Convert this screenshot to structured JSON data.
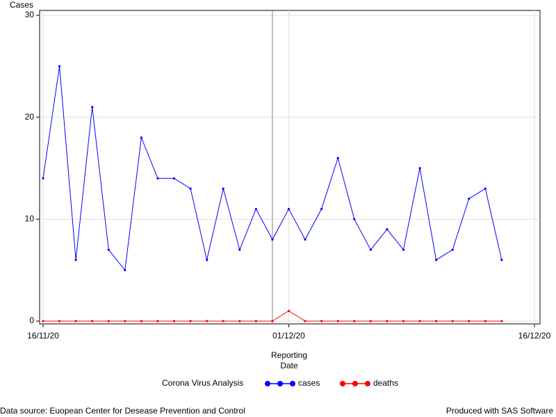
{
  "chart_data": {
    "type": "line",
    "y_label": "Cases",
    "x_label": [
      "Reporting",
      "Date"
    ],
    "legend_title": "Corona Virus Analysis",
    "x": [
      "16/11/20",
      "17/11/20",
      "18/11/20",
      "19/11/20",
      "20/11/20",
      "21/11/20",
      "22/11/20",
      "23/11/20",
      "24/11/20",
      "25/11/20",
      "26/11/20",
      "27/11/20",
      "28/11/20",
      "29/11/20",
      "30/11/20",
      "01/12/20",
      "02/12/20",
      "03/12/20",
      "04/12/20",
      "05/12/20",
      "06/12/20",
      "07/12/20",
      "08/12/20",
      "09/12/20",
      "10/12/20",
      "11/12/20",
      "12/12/20",
      "13/12/20",
      "14/12/20"
    ],
    "series": [
      {
        "name": "cases",
        "color": "#0000ff",
        "values": [
          14,
          25,
          6,
          21,
          7,
          5,
          18,
          14,
          14,
          13,
          6,
          13,
          7,
          11,
          8,
          11,
          8,
          11,
          16,
          10,
          7,
          9,
          7,
          15,
          6,
          7,
          12,
          13,
          6
        ]
      },
      {
        "name": "deaths",
        "color": "#ff0000",
        "values": [
          0,
          0,
          0,
          0,
          0,
          0,
          0,
          0,
          0,
          0,
          0,
          0,
          0,
          0,
          0,
          1,
          0,
          0,
          0,
          0,
          0,
          0,
          0,
          0,
          0,
          0,
          0,
          0,
          0
        ]
      }
    ],
    "xlim": [
      "16/11/20",
      "16/12/20"
    ],
    "xticks": [
      "16/11/20",
      "01/12/20",
      "16/12/20"
    ],
    "ylim": [
      0,
      30
    ],
    "yticks": [
      0,
      10,
      20,
      30
    ],
    "grid": true,
    "reference_line": "30/11/20",
    "footnote_left": "Data source: Euopean Center for Desease Prevention and Control",
    "footnote_right": "Produced with SAS Software"
  }
}
